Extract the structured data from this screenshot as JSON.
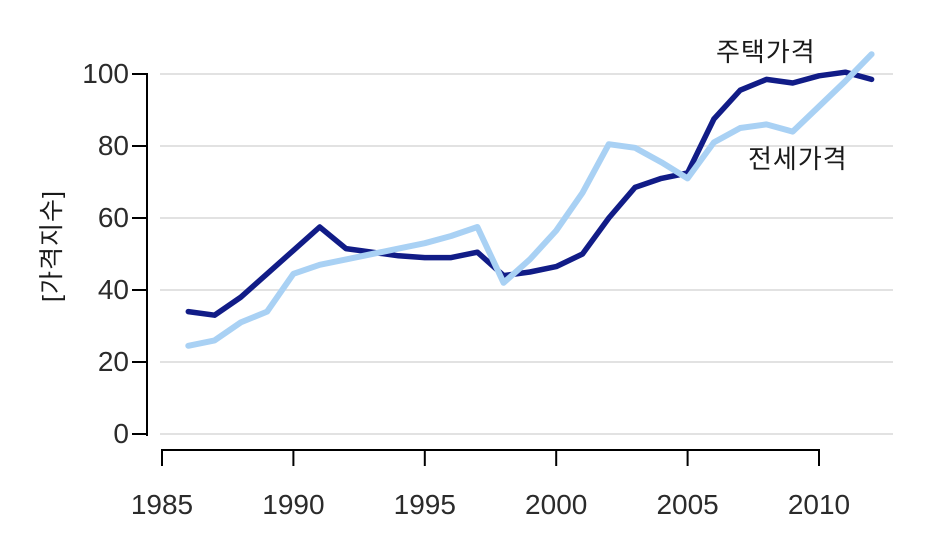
{
  "chart_data": {
    "type": "line",
    "title": "",
    "xlabel": "",
    "ylabel": "[가격지수]",
    "x": [
      1986,
      1987,
      1988,
      1989,
      1990,
      1991,
      1992,
      1993,
      1994,
      1995,
      1996,
      1997,
      1998,
      1999,
      2000,
      2001,
      2002,
      2003,
      2004,
      2005,
      2006,
      2007,
      2008,
      2009,
      2010,
      2011,
      2012
    ],
    "series": [
      {
        "name": "주택가격",
        "color": "#111c87",
        "values": [
          34,
          33,
          38,
          44.5,
          51,
          57.5,
          51.5,
          50.5,
          49.5,
          49,
          49,
          50.5,
          44,
          45,
          46.5,
          50,
          60,
          68.5,
          71,
          72.5,
          87.5,
          95.5,
          98.5,
          97.5,
          99.5,
          100.5,
          98.5
        ]
      },
      {
        "name": "전세가격",
        "color": "#a9d1f4",
        "values": [
          24.5,
          26,
          31,
          34,
          44.5,
          47,
          48.5,
          50,
          51.5,
          53,
          55,
          57.5,
          42,
          48.5,
          56.5,
          67,
          80.5,
          79.5,
          75.5,
          71,
          81,
          85,
          86,
          84,
          91,
          98,
          105.5
        ]
      }
    ],
    "xticks": [
      1985,
      1990,
      1995,
      2000,
      2005,
      2010
    ],
    "yticks": [
      0,
      20,
      40,
      60,
      80,
      100
    ],
    "xlim": [
      1985,
      2012.5
    ],
    "ylim": [
      0,
      100
    ],
    "grid": "horizontal",
    "legend": "inline-annotations",
    "style": {
      "grid_color": "#d9d9d9",
      "axis_color": "#000000",
      "tick_text_color": "#2b2b2b"
    }
  }
}
